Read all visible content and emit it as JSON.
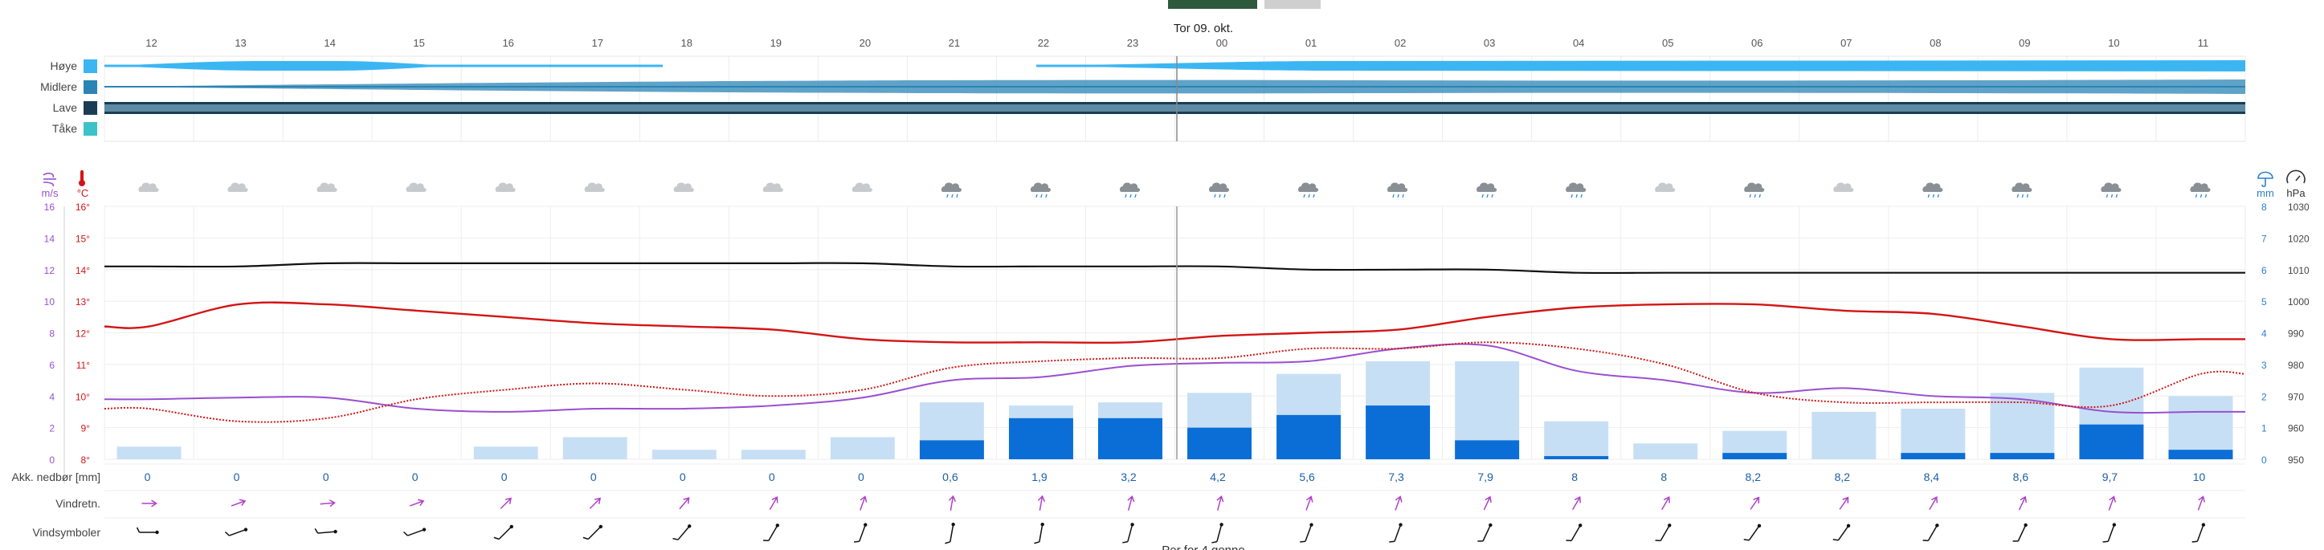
{
  "tabs": [
    {
      "label": "",
      "color": "#2d5a3c"
    },
    {
      "label": "",
      "color": "#cfcfcf"
    }
  ],
  "date_label": "Tor 09. okt.",
  "hours": [
    "12",
    "13",
    "14",
    "15",
    "16",
    "17",
    "18",
    "19",
    "20",
    "21",
    "22",
    "23",
    "00",
    "01",
    "02",
    "03",
    "04",
    "05",
    "06",
    "07",
    "08",
    "09",
    "10",
    "11"
  ],
  "cloud_layers": [
    {
      "label": "Høye",
      "color": "#3cb6f2"
    },
    {
      "label": "Midlere",
      "color": "#2b84b5"
    },
    {
      "label": "Lave",
      "color": "#1a3d55"
    },
    {
      "label": "Tåke",
      "color": "#3cc2c8"
    }
  ],
  "units": {
    "wind": "m/s",
    "temp": "°C",
    "precip": "mm",
    "pressure": "hPa"
  },
  "wind_ticks": [
    "16",
    "14",
    "12",
    "10",
    "8",
    "6",
    "4",
    "2",
    "0"
  ],
  "temp_ticks": [
    "16°",
    "15°",
    "14°",
    "13°",
    "12°",
    "11°",
    "10°",
    "9°",
    "8°"
  ],
  "precip_ticks": [
    "8",
    "7",
    "6",
    "5",
    "4",
    "3",
    "2",
    "1",
    "0"
  ],
  "pressure_ticks": [
    "1030",
    "1020",
    "1010",
    "1000",
    "990",
    "980",
    "970",
    "960",
    "950"
  ],
  "rows": {
    "precip_label": "Akk. nedbør [mm]",
    "wind_dir_label": "Vindretn.",
    "wind_symbol_label": "Vindsymboler"
  },
  "accumulated_precip": [
    "0",
    "0",
    "0",
    "0",
    "0",
    "0",
    "0",
    "0",
    "0",
    "0,6",
    "1,9",
    "3,2",
    "4,2",
    "5,6",
    "7,3",
    "7,9",
    "8",
    "8",
    "8,2",
    "8,2",
    "8,4",
    "8,6",
    "9,7",
    "10"
  ],
  "footer_text": "Per for 4 gonno",
  "weather_icons": [
    "cloud",
    "cloud",
    "cloud",
    "cloud",
    "cloud",
    "cloud",
    "cloud",
    "cloud",
    "cloud",
    "rain-cloud",
    "rain-cloud",
    "rain-cloud",
    "rain-cloud",
    "rain-cloud",
    "rain-cloud",
    "rain-cloud",
    "rain-cloud",
    "cloud",
    "rain-cloud",
    "cloud",
    "rain-cloud",
    "rain-cloud",
    "rain-cloud",
    "rain-cloud"
  ],
  "wind_directions_deg": [
    90,
    70,
    85,
    70,
    45,
    45,
    40,
    30,
    20,
    10,
    10,
    15,
    15,
    20,
    20,
    25,
    30,
    30,
    35,
    35,
    30,
    25,
    20,
    20
  ],
  "colors": {
    "temperature": "#d41414",
    "dewpoint": "#d41414",
    "wind": "#9a4fd0",
    "pressure": "#111111",
    "precip_max": "#c7dff5",
    "precip": "#0a6ed6",
    "wind_dir": "#b040c8"
  },
  "chart_data": {
    "type": "line",
    "x": [
      "12",
      "13",
      "14",
      "15",
      "16",
      "17",
      "18",
      "19",
      "20",
      "21",
      "22",
      "23",
      "00",
      "01",
      "02",
      "03",
      "04",
      "05",
      "06",
      "07",
      "08",
      "09",
      "10",
      "11"
    ],
    "series": [],
    "temperature_c": [
      12.2,
      12.9,
      12.9,
      12.7,
      12.5,
      12.3,
      12.2,
      12.1,
      11.8,
      11.7,
      11.7,
      11.7,
      11.9,
      12.0,
      12.1,
      12.5,
      12.8,
      12.9,
      12.9,
      12.7,
      12.6,
      12.2,
      11.8,
      11.8
    ],
    "dewpoint_c": [
      9.6,
      9.2,
      9.3,
      9.9,
      10.2,
      10.4,
      10.2,
      10.0,
      10.2,
      10.9,
      11.1,
      11.2,
      11.2,
      11.5,
      11.5,
      11.7,
      11.5,
      11.0,
      10.1,
      9.8,
      9.8,
      9.8,
      9.7,
      10.7
    ],
    "wind_ms": [
      3.8,
      3.9,
      3.9,
      3.2,
      3.0,
      3.2,
      3.2,
      3.4,
      3.9,
      5.0,
      5.2,
      5.9,
      6.1,
      6.2,
      7.0,
      7.2,
      5.6,
      5.0,
      4.2,
      4.5,
      4.0,
      3.8,
      3.0,
      3.0
    ],
    "pressure_hpa": [
      1011,
      1011,
      1012,
      1012,
      1012,
      1012,
      1012,
      1012,
      1012,
      1011,
      1011,
      1011,
      1011,
      1010,
      1010,
      1010,
      1009,
      1009,
      1009,
      1009,
      1009,
      1009,
      1009,
      1009
    ],
    "precip_mm": [
      0,
      0,
      0,
      0,
      0,
      0,
      0,
      0,
      0,
      0.6,
      1.3,
      1.3,
      1.0,
      1.4,
      1.7,
      0.6,
      0.1,
      0,
      0.2,
      0,
      0.2,
      0.2,
      1.1,
      0.3
    ],
    "precip_max_mm": [
      0.4,
      0,
      0,
      0,
      0.4,
      0.7,
      0.3,
      0.3,
      0.7,
      1.8,
      1.7,
      1.8,
      2.1,
      2.7,
      3.1,
      3.1,
      1.2,
      0.5,
      0.9,
      1.5,
      1.6,
      2.1,
      2.9,
      2.0
    ],
    "wind_ylim": [
      0,
      16
    ],
    "temp_ylim": [
      8,
      16
    ],
    "precip_ylim": [
      0,
      8
    ],
    "pressure_ylim": [
      950,
      1030
    ]
  }
}
